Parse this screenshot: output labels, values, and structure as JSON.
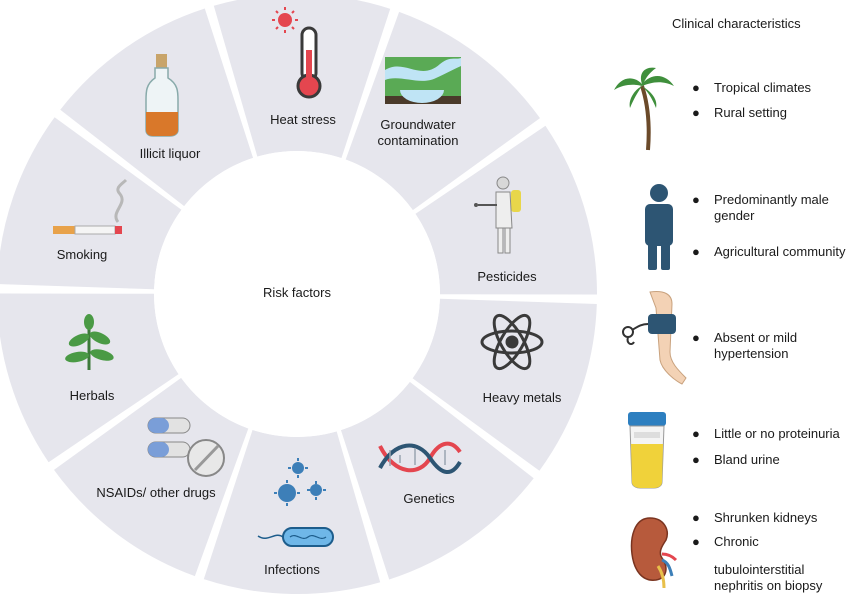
{
  "center_label": "Risk factors",
  "risk_factors": [
    {
      "label": "Heat stress",
      "icon": "thermometer-icon"
    },
    {
      "label": "Groundwater contamination",
      "label_lines": [
        "Groundwater",
        "contamination"
      ],
      "icon": "groundwater-icon"
    },
    {
      "label": "Pesticides",
      "icon": "pesticide-sprayer-icon"
    },
    {
      "label": "Heavy metals",
      "icon": "atom-icon"
    },
    {
      "label": "Genetics",
      "icon": "dna-icon"
    },
    {
      "label": "Infections",
      "icon": "microbe-icon"
    },
    {
      "label": "NSAIDs/ other drugs",
      "icon": "pills-icon"
    },
    {
      "label": "Herbals",
      "icon": "herb-plant-icon"
    },
    {
      "label": "Smoking",
      "icon": "cigarette-icon"
    },
    {
      "label": "Illicit liquor",
      "icon": "liquor-bottle-icon"
    }
  ],
  "clinical": {
    "title": "Clinical characteristics",
    "bullet": "●",
    "groups": [
      {
        "icon": "palm-tree-icon",
        "items": [
          "Tropical climates",
          "Rural setting"
        ]
      },
      {
        "icon": "person-icon",
        "items": [
          "Predominantly male gender",
          "Agricultural community"
        ]
      },
      {
        "icon": "blood-pressure-arm-icon",
        "items": [
          "Absent or mild hypertension"
        ]
      },
      {
        "icon": "urine-sample-icon",
        "items": [
          "Little or no proteinuria",
          "Bland urine"
        ]
      },
      {
        "icon": "kidney-icon",
        "items": [
          "Shrunken kidneys",
          "Chronic"
        ],
        "continuation": "tubulointerstitial nephritis on biopsy"
      }
    ]
  },
  "colors": {
    "segment": "#e6e6ed",
    "gap": "#ffffff",
    "accent_red": "#e4464f",
    "accent_blue": "#2d5573"
  }
}
